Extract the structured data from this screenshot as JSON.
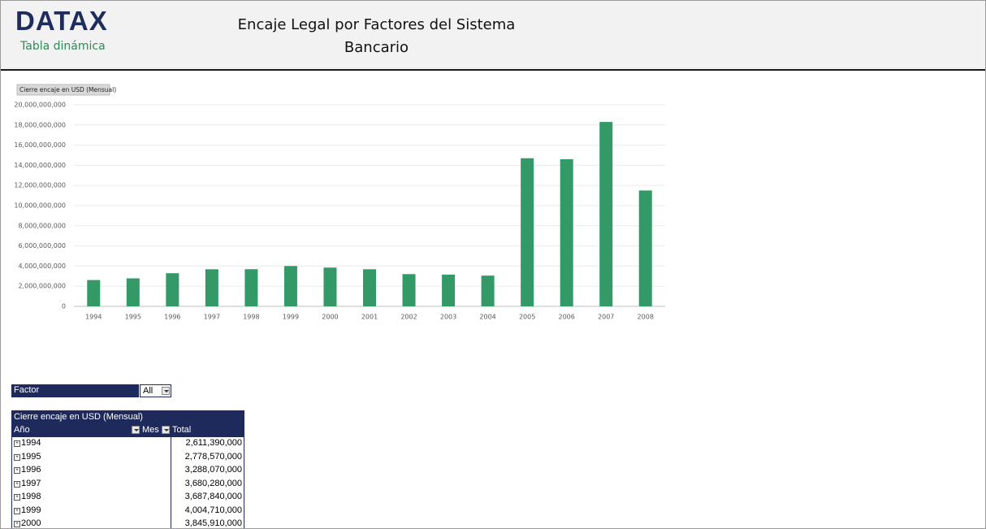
{
  "header": {
    "logo": "DATAX",
    "subtitle": "Tabla dinámica",
    "title": "Encaje Legal por Factores del Sistema Bancario"
  },
  "chart_data": {
    "type": "bar",
    "series_button": "Cierre encaje en USD (Mensual)",
    "color": "#339966",
    "grid": true,
    "categories": [
      "1994",
      "1995",
      "1996",
      "1997",
      "1998",
      "1999",
      "2000",
      "2001",
      "2002",
      "2003",
      "2004",
      "2005",
      "2006",
      "2007",
      "2008"
    ],
    "values": [
      2611390000,
      2778570000,
      3288070000,
      3680280000,
      3687840000,
      4004710000,
      3845910000,
      3680000000,
      3200000000,
      3150000000,
      3050000000,
      14700000000,
      14600000000,
      18300000000,
      11500000000
    ],
    "ylim": [
      0,
      20000000000
    ],
    "yticks": [
      0,
      {
        "value": 2000000000,
        "label": "2,000,000,000"
      },
      {
        "value": 4000000000,
        "label": "4,000,000,000"
      },
      {
        "value": 6000000000,
        "label": "6,000,000,000"
      },
      {
        "value": 8000000000,
        "label": "8,000,000,000"
      },
      {
        "value": 10000000000,
        "label": "10,000,000,000"
      },
      {
        "value": 12000000000,
        "label": "12,000,000,000"
      },
      {
        "value": 14000000000,
        "label": "14,000,000,000"
      },
      {
        "value": 16000000000,
        "label": "16,000,000,000"
      },
      {
        "value": 18000000000,
        "label": "18,000,000,000"
      },
      {
        "value": 20000000000,
        "label": "20,000,000,000"
      }
    ]
  },
  "filter": {
    "label": "Factor",
    "value": "All"
  },
  "table": {
    "title": "Cierre encaje en USD (Mensual)",
    "columns": [
      "Año",
      "Mes",
      "Total"
    ],
    "rows": [
      [
        "1994",
        "2,611,390,000"
      ],
      [
        "1995",
        "2,778,570,000"
      ],
      [
        "1996",
        "3,288,070,000"
      ],
      [
        "1997",
        "3,680,280,000"
      ],
      [
        "1998",
        "3,687,840,000"
      ],
      [
        "1999",
        "4,004,710,000"
      ],
      [
        "2000",
        "3,845,910,000"
      ]
    ]
  }
}
